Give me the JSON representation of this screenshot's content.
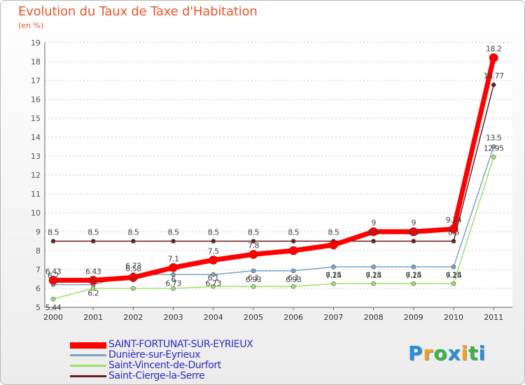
{
  "header": {
    "title": "Evolution du Taux de Taxe d'Habitation",
    "unit": "(en %)"
  },
  "chart_data": {
    "type": "line",
    "title": "Evolution du Taux de Taxe d'Habitation",
    "ylabel": "(en %)",
    "xlabel": "",
    "categories": [
      "2000",
      "2001",
      "2002",
      "2003",
      "2004",
      "2005",
      "2006",
      "2007",
      "2008",
      "2009",
      "2010",
      "2011"
    ],
    "ylim": [
      5,
      19
    ],
    "yticks": [
      "5",
      "6",
      "7",
      "8",
      "9",
      "10",
      "11",
      "12",
      "13",
      "14",
      "15",
      "16",
      "17",
      "18",
      "19"
    ],
    "grid": true,
    "legend": "bottom-left",
    "series": [
      {
        "name": "Saint-Cierge-la-Serre",
        "color": "#6b1a22",
        "width": 1.5,
        "r": 3,
        "values": [
          8.5,
          8.5,
          8.5,
          8.5,
          8.5,
          8.5,
          8.5,
          8.5,
          8.5,
          8.5,
          8.5,
          16.77
        ],
        "labels": [
          "8.5",
          "8.5",
          "8.5",
          "8.5",
          "8.5",
          "8.5",
          "8.5",
          "8.5",
          "8.5",
          "8.5",
          "8.5",
          "16.77"
        ]
      },
      {
        "name": "Saint-Vincent-de-Durfort",
        "color": "#9ee06a",
        "width": 1.5,
        "r": 3,
        "values": [
          5.44,
          6,
          6,
          6,
          6.1,
          6.1,
          6.1,
          6.25,
          6.25,
          6.25,
          6.25,
          12.95
        ],
        "labels": [
          "5.44",
          "6",
          "6",
          "6",
          "6.1",
          "6.1",
          "6.1",
          "6.25",
          "6.25",
          "6.25",
          "6.25",
          "12.95"
        ]
      },
      {
        "name": "Dunière-sur-Eyrieux",
        "color": "#7aa3c4",
        "width": 1.5,
        "r": 3,
        "values": [
          6.2,
          6.2,
          6.73,
          6.73,
          6.73,
          6.93,
          6.93,
          7.14,
          7.14,
          7.14,
          7.14,
          13.5
        ],
        "labels": [
          "6.2",
          "6.2",
          "6.73",
          "6.73",
          "6.73",
          "6.93",
          "6.93",
          "7.14",
          "7.14",
          "7.14",
          "7.14",
          "13.5"
        ]
      },
      {
        "name": "SAINT-FORTUNAT-SUR-EYRIEUX",
        "color": "#ff0000",
        "width": 7,
        "r": 6,
        "values": [
          6.43,
          6.43,
          6.58,
          7.1,
          7.5,
          7.8,
          8.0,
          8.3,
          9,
          9,
          9.14,
          18.2
        ],
        "labels": [
          "6.43",
          "6.43",
          "6.58",
          "7.1",
          "7.5",
          "7.8",
          "",
          "",
          "9",
          "9",
          "9.14",
          "18.2"
        ]
      }
    ],
    "legend_order": [
      "SAINT-FORTUNAT-SUR-EYRIEUX",
      "Dunière-sur-Eyrieux",
      "Saint-Vincent-de-Durfort",
      "Saint-Cierge-la-Serre"
    ]
  },
  "brand": {
    "letters": [
      "P",
      "r",
      "o",
      "x",
      "i",
      "t",
      "i"
    ],
    "colors": [
      "#2a8fd8",
      "#f0a020",
      "#3cb24a",
      "#2a8fd8",
      "#f0a020",
      "#3cb24a",
      "#2a8fd8"
    ]
  }
}
